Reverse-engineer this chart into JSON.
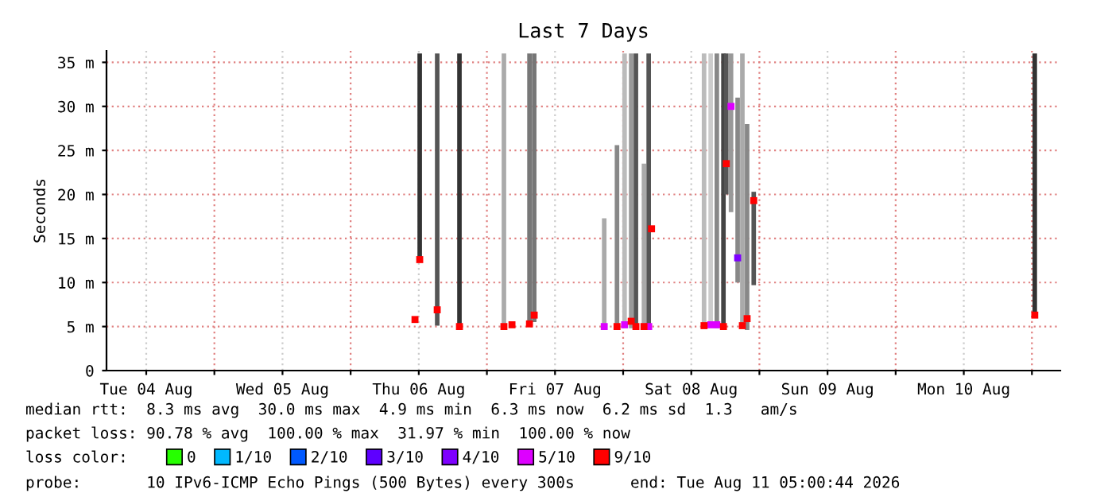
{
  "chart_data": {
    "type": "bar",
    "title": "Last 7 Days",
    "ylabel": "Seconds",
    "x": [
      "2026-08-06T11:20",
      "2026-08-06T12:10",
      "2026-08-06T15:15",
      "2026-08-06T19:10",
      "2026-08-07T03:00",
      "2026-08-07T04:25",
      "2026-08-07T07:30",
      "2026-08-07T08:20",
      "2026-08-07T20:40",
      "2026-08-07T22:55",
      "2026-08-08T00:15",
      "2026-08-08T01:25",
      "2026-08-08T02:15",
      "2026-08-08T03:40",
      "2026-08-08T04:30",
      "2026-08-08T05:00",
      "2026-08-08T14:15",
      "2026-08-08T15:25",
      "2026-08-08T16:30",
      "2026-08-08T17:40",
      "2026-08-08T18:10",
      "2026-08-08T19:00",
      "2026-08-08T20:10",
      "2026-08-08T21:00",
      "2026-08-08T21:50",
      "2026-08-08T23:00",
      "2026-08-11T00:30"
    ],
    "series": [
      {
        "base": [
          null,
          12.6,
          5.1,
          5.0,
          4.8,
          null,
          5.0,
          5.5,
          4.9,
          4.8,
          4.8,
          4.8,
          4.8,
          4.8,
          4.8,
          null,
          4.8,
          4.8,
          4.8,
          4.8,
          20.0,
          18.0,
          10.0,
          4.8,
          4.6,
          9.7,
          6.0
        ],
        "values": [
          null,
          23.4,
          30.9,
          31.0,
          31.2,
          null,
          31.0,
          30.5,
          12.4,
          20.8,
          31.2,
          31.2,
          31.2,
          18.7,
          31.2,
          null,
          31.2,
          31.2,
          31.2,
          31.2,
          16.0,
          18.0,
          21.0,
          31.2,
          23.4,
          10.6,
          30.0
        ],
        "colors": [
          "#333333",
          "#333333",
          "#555555",
          "#333333",
          "#aaaaaa",
          "#aaaaaa",
          "#777777",
          "#777777",
          "#aaaaaa",
          "#888888",
          "#bbbbbb",
          "#999999",
          "#555555",
          "#aaaaaa",
          "#555555",
          "#444444",
          "#bbbbbb",
          "#cccccc",
          "#888888",
          "#444444",
          "#555555",
          "#999999",
          "#888888",
          "#aaaaaa",
          "#888888",
          "#555555",
          "#333333"
        ]
      },
      {
        "type": "scatter",
        "name": "0",
        "color": "#26ff00",
        "values": [
          null,
          null,
          null,
          null,
          null,
          null,
          null,
          null,
          null,
          null,
          null,
          null,
          null,
          null,
          null,
          null,
          null,
          null,
          null,
          null,
          null,
          null,
          null,
          null,
          null,
          null,
          null
        ]
      },
      {
        "type": "scatter",
        "name": "1/10",
        "color": "#00b8ff",
        "values": [
          null,
          null,
          null,
          null,
          null,
          null,
          null,
          null,
          null,
          null,
          null,
          null,
          null,
          null,
          null,
          null,
          null,
          null,
          null,
          null,
          null,
          null,
          null,
          null,
          null,
          null,
          null
        ]
      },
      {
        "type": "scatter",
        "name": "2/10",
        "color": "#0059ff",
        "values": [
          null,
          null,
          null,
          null,
          null,
          null,
          null,
          null,
          null,
          null,
          null,
          null,
          null,
          null,
          null,
          null,
          null,
          null,
          null,
          null,
          null,
          null,
          null,
          null,
          null,
          null,
          null
        ]
      },
      {
        "type": "scatter",
        "name": "3/10",
        "color": "#5e00ff",
        "values": [
          null,
          null,
          null,
          null,
          null,
          null,
          null,
          null,
          null,
          null,
          null,
          null,
          null,
          null,
          null,
          null,
          null,
          null,
          null,
          null,
          null,
          null,
          null,
          null,
          null,
          null,
          null
        ]
      },
      {
        "type": "scatter",
        "name": "4/10",
        "color": "#7e00ff",
        "values": [
          null,
          null,
          null,
          null,
          null,
          null,
          null,
          null,
          null,
          null,
          null,
          null,
          null,
          null,
          null,
          null,
          null,
          null,
          null,
          null,
          null,
          null,
          12.8,
          null,
          null,
          null,
          null
        ]
      },
      {
        "type": "scatter",
        "name": "5/10",
        "color": "#dd00ff",
        "values": [
          null,
          null,
          null,
          null,
          null,
          null,
          null,
          null,
          5.0,
          null,
          5.2,
          null,
          null,
          null,
          5.0,
          null,
          null,
          5.2,
          5.2,
          null,
          null,
          30.0,
          null,
          null,
          null,
          null,
          null
        ]
      },
      {
        "type": "scatter",
        "name": "9/10",
        "color": "#ff0000",
        "values": [
          5.8,
          12.6,
          6.9,
          5.0,
          5.0,
          5.2,
          5.3,
          6.3,
          null,
          5.0,
          null,
          5.6,
          5.0,
          5.0,
          null,
          16.1,
          5.1,
          null,
          null,
          5.0,
          23.5,
          null,
          null,
          5.1,
          5.9,
          19.3,
          6.3
        ]
      }
    ],
    "xlim": [
      "2026-08-04T05:00",
      "2026-08-11T05:00"
    ],
    "xticks": [
      {
        "value": "2026-08-04T12:00",
        "label": "Tue 04 Aug"
      },
      {
        "value": "2026-08-05T00:00",
        "label": null
      },
      {
        "value": "2026-08-05T12:00",
        "label": "Wed 05 Aug"
      },
      {
        "value": "2026-08-06T00:00",
        "label": null
      },
      {
        "value": "2026-08-06T12:00",
        "label": "Thu 06 Aug"
      },
      {
        "value": "2026-08-07T00:00",
        "label": null
      },
      {
        "value": "2026-08-07T12:00",
        "label": "Fri 07 Aug"
      },
      {
        "value": "2026-08-08T00:00",
        "label": null
      },
      {
        "value": "2026-08-08T12:00",
        "label": "Sat 08 Aug"
      },
      {
        "value": "2026-08-09T00:00",
        "label": null
      },
      {
        "value": "2026-08-09T12:00",
        "label": "Sun 09 Aug"
      },
      {
        "value": "2026-08-10T00:00",
        "label": null
      },
      {
        "value": "2026-08-10T12:00",
        "label": "Mon 10 Aug"
      },
      {
        "value": "2026-08-11T00:00",
        "label": null
      }
    ],
    "ylim": [
      0,
      36.3
    ],
    "yticks": [
      0,
      {
        "value": 5,
        "label": "5 m"
      },
      {
        "value": 10,
        "label": "10 m"
      },
      {
        "value": 15,
        "label": "15 m"
      },
      {
        "value": 20,
        "label": "20 m"
      },
      {
        "value": 25,
        "label": "25 m"
      },
      {
        "value": 30,
        "label": "30 m"
      },
      {
        "value": 35,
        "label": "35 m"
      }
    ],
    "grid": true,
    "marker": "square",
    "legend": "bottom",
    "legend_title": "loss color:",
    "annotations": [
      "median rtt:  8.3 ms avg  30.0 ms max  4.9 ms min  6.3 ms now  6.2 ms sd  1.3   am/s",
      "packet loss: 90.78 % avg  100.00 % max  31.97 % min  100.00 % now",
      "probe:       10 IPv6-ICMP Echo Pings (500 Bytes) every 300s      end: Tue Aug 11 05:00:44 2026"
    ]
  }
}
